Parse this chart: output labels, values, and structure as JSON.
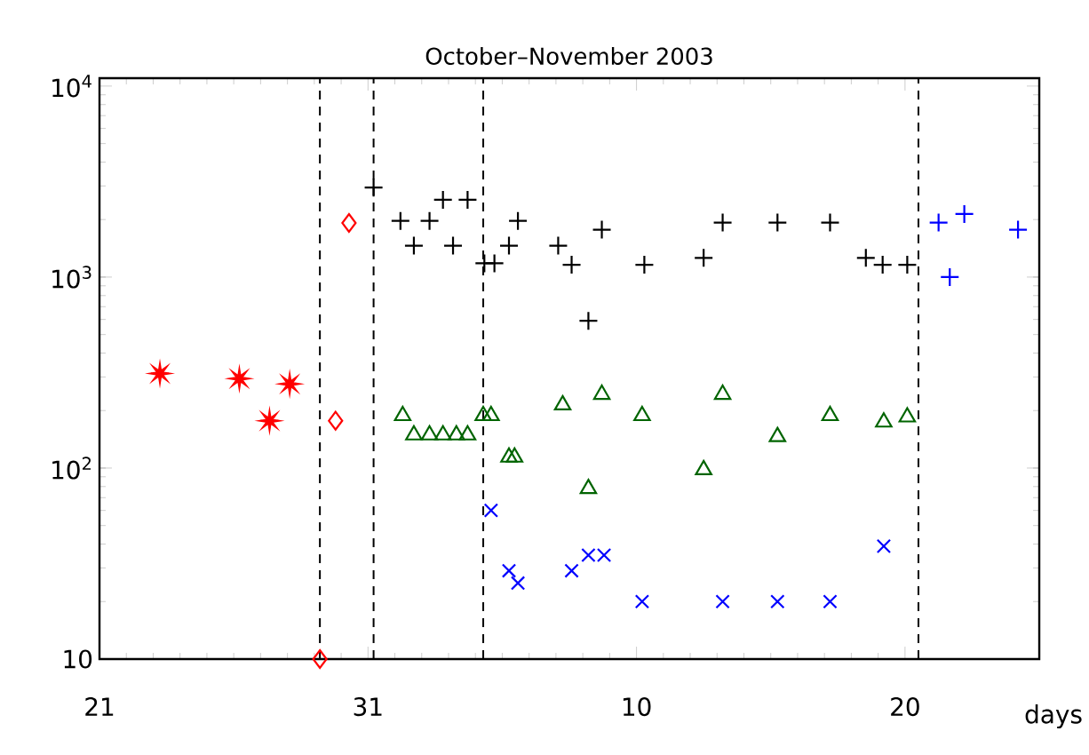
{
  "chart_data": {
    "type": "scatter",
    "title": "October–November 2003",
    "xlabel": "days",
    "xlim": [
      "2003-10-21",
      "2003-11-25"
    ],
    "xticks": [
      {
        "value": "2003-10-21",
        "label": "21"
      },
      {
        "value": "2003-10-31",
        "label": "31"
      },
      {
        "value": "2003-11-10",
        "label": "10"
      },
      {
        "value": "2003-11-20",
        "label": "20"
      }
    ],
    "ylim": [
      10,
      11000
    ],
    "log": "y",
    "yticks": [
      {
        "value": 10,
        "label": "10"
      },
      {
        "value": 100,
        "label": "10$^{2}$"
      },
      {
        "value": 1000,
        "label": "10$^{3}$"
      },
      {
        "value": 10000,
        "label": "10$^{4}$"
      }
    ],
    "ref_lines": [
      {
        "axis": "x",
        "value": "2003-10-29T05:00",
        "color": "#000000",
        "line_style": "dashed"
      },
      {
        "axis": "x",
        "value": "2003-10-31T05:00",
        "color": "#000000",
        "line_style": "dashed"
      },
      {
        "axis": "x",
        "value": "2003-11-04T07:00",
        "color": "#000000",
        "line_style": "dashed"
      },
      {
        "axis": "x",
        "value": "2003-11-20T12:00",
        "color": "#000000",
        "line_style": "dashed"
      }
    ],
    "series": [
      {
        "color": "#ff0000",
        "marker": "star",
        "x": [
          "2003-10-23T06:00",
          "2003-10-26T05:00",
          "2003-10-27T08:00",
          "2003-10-28T02:00"
        ],
        "values": [
          313,
          294,
          177,
          276
        ]
      },
      {
        "color": "#ff0000",
        "marker": "diamond",
        "x": [
          "2003-10-29T05:00",
          "2003-10-29T19:00",
          "2003-10-30T07:00"
        ],
        "values": [
          10,
          177,
          1920
        ]
      },
      {
        "color": "#000000",
        "marker": "plus",
        "x": [
          "2003-10-31T05:00",
          "2003-11-01T05:00",
          "2003-11-01T17:00",
          "2003-11-02T07:00",
          "2003-11-02T19:00",
          "2003-11-03T04:00",
          "2003-11-03T17:00",
          "2003-11-04T08:00",
          "2003-11-04T17:00",
          "2003-11-05T06:00",
          "2003-11-05T14:00",
          "2003-11-07T02:00",
          "2003-11-07T14:00",
          "2003-11-08T05:00",
          "2003-11-08T17:00",
          "2003-11-10T07:00",
          "2003-11-12T12:00",
          "2003-11-13T05:00",
          "2003-11-15T06:00",
          "2003-11-17T05:00",
          "2003-11-18T13:00",
          "2003-11-19T04:00",
          "2003-11-20T02:00"
        ],
        "values": [
          2940,
          1970,
          1460,
          1970,
          2540,
          1460,
          2540,
          1180,
          1180,
          1460,
          1970,
          1460,
          1160,
          590,
          1770,
          1160,
          1260,
          1930,
          1930,
          1930,
          1260,
          1160,
          1160
        ]
      },
      {
        "color": "#0000ff",
        "marker": "plus",
        "x": [
          "2003-11-21T06:00",
          "2003-11-21T16:00",
          "2003-11-22T05:00",
          "2003-11-24T05:00"
        ],
        "values": [
          1930,
          1000,
          2140,
          1770
        ]
      },
      {
        "color": "#006400",
        "marker": "triangle",
        "x": [
          "2003-11-01T07:00",
          "2003-11-01T17:00",
          "2003-11-02T07:00",
          "2003-11-02T19:00",
          "2003-11-03T07:00",
          "2003-11-03T17:00",
          "2003-11-04T07:00",
          "2003-11-04T14:00",
          "2003-11-05T06:00",
          "2003-11-05T11:00",
          "2003-11-07T06:00",
          "2003-11-08T05:00",
          "2003-11-08T17:00",
          "2003-11-10T05:00",
          "2003-11-12T12:00",
          "2003-11-13T05:00",
          "2003-11-15T06:00",
          "2003-11-17T05:00",
          "2003-11-19T05:00",
          "2003-11-20T02:00"
        ],
        "values": [
          188,
          149,
          149,
          149,
          149,
          149,
          188,
          188,
          114,
          114,
          214,
          78,
          243,
          188,
          98,
          243,
          146,
          188,
          174,
          185
        ]
      },
      {
        "color": "#0000ff",
        "marker": "cross",
        "x": [
          "2003-11-04T14:00",
          "2003-11-05T06:00",
          "2003-11-05T14:00",
          "2003-11-07T14:00",
          "2003-11-08T05:00",
          "2003-11-08T19:00",
          "2003-11-10T05:00",
          "2003-11-13T05:00",
          "2003-11-15T06:00",
          "2003-11-17T05:00",
          "2003-11-19T05:00"
        ],
        "values": [
          60,
          29,
          25,
          29,
          35,
          35,
          20,
          20,
          20,
          20,
          39
        ]
      }
    ]
  }
}
